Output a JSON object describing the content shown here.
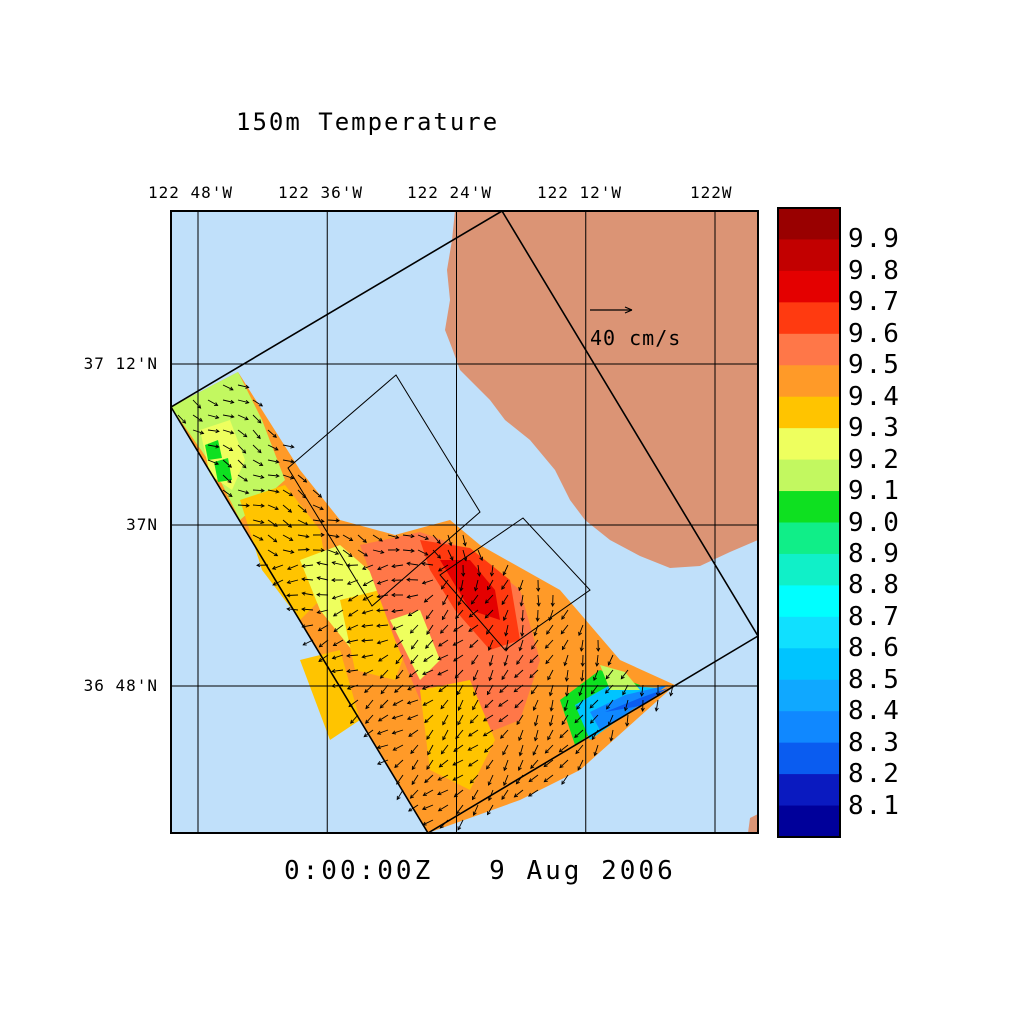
{
  "title": "150m Temperature",
  "timestamp": "0:00:00Z   9 Aug 2006",
  "velocity_scale": {
    "label": "40 cm/s",
    "speed_cm_s": 40
  },
  "longitude_ticks": [
    {
      "label": "122 48'W",
      "value": -122.8
    },
    {
      "label": "122 36'W",
      "value": -122.6
    },
    {
      "label": "122 24'W",
      "value": -122.4
    },
    {
      "label": "122 12'W",
      "value": -122.2
    },
    {
      "label": "122W",
      "value": -122.0
    }
  ],
  "latitude_ticks": [
    {
      "label": "37 12'N",
      "value": 37.2
    },
    {
      "label": "37N",
      "value": 37.0
    },
    {
      "label": "36 48'N",
      "value": 36.8
    }
  ],
  "colorbar": {
    "labels": [
      "9.9",
      "9.8",
      "9.7",
      "9.6",
      "9.5",
      "9.4",
      "9.3",
      "9.2",
      "9.1",
      "9.0",
      "8.9",
      "8.8",
      "8.7",
      "8.6",
      "8.5",
      "8.4",
      "8.3",
      "8.2",
      "8.1"
    ],
    "colors": [
      "#990000",
      "#c20000",
      "#e40000",
      "#ff3a10",
      "#ff7748",
      "#ff9a28",
      "#ffc400",
      "#eeff5e",
      "#c2f860",
      "#0ee020",
      "#10ee88",
      "#10f0c8",
      "#00ffff",
      "#10e0ff",
      "#00c4ff",
      "#10a8ff",
      "#1088ff",
      "#0a5cf0",
      "#0a1ac0",
      "#00009a"
    ]
  },
  "colors": {
    "ocean": "#c0e0fa",
    "land": "#db9475",
    "grid": "#000000"
  }
}
